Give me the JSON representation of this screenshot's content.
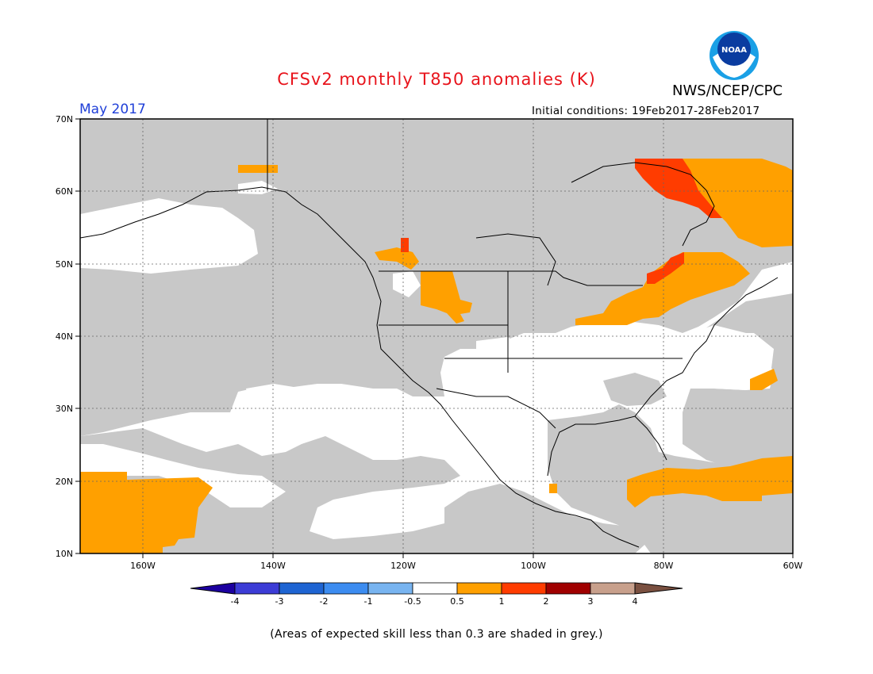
{
  "header": {
    "title": "CFSv2 monthly T850 anomalies (K)",
    "org": "NWS/NCEP/CPC",
    "logo_text": "NOAA",
    "month": "May 2017",
    "initial_conditions": "Initial conditions: 19Feb2017-28Feb2017"
  },
  "map": {
    "lat_labels": [
      "70N",
      "60N",
      "50N",
      "40N",
      "30N",
      "20N",
      "10N"
    ],
    "lon_labels": [
      "160W",
      "140W",
      "120W",
      "100W",
      "80W",
      "60W"
    ]
  },
  "legend": {
    "colors": [
      "#1c00a0",
      "#3c3cd6",
      "#1e64d2",
      "#3c8cf0",
      "#78b4f0",
      "#ffffff",
      "#ffa000",
      "#ff3c00",
      "#a00000",
      "#c8a08c",
      "#7a5040"
    ],
    "ticks": [
      "-4",
      "-3",
      "-2",
      "-1",
      "-0.5",
      "0.5",
      "1",
      "2",
      "3",
      "4"
    ]
  },
  "footnote": "(Areas of expected skill less than 0.3 are shaded in grey.)",
  "colors": {
    "grey": "#c8c8c8",
    "title": "#e8141c",
    "month": "#1f3fd8"
  }
}
